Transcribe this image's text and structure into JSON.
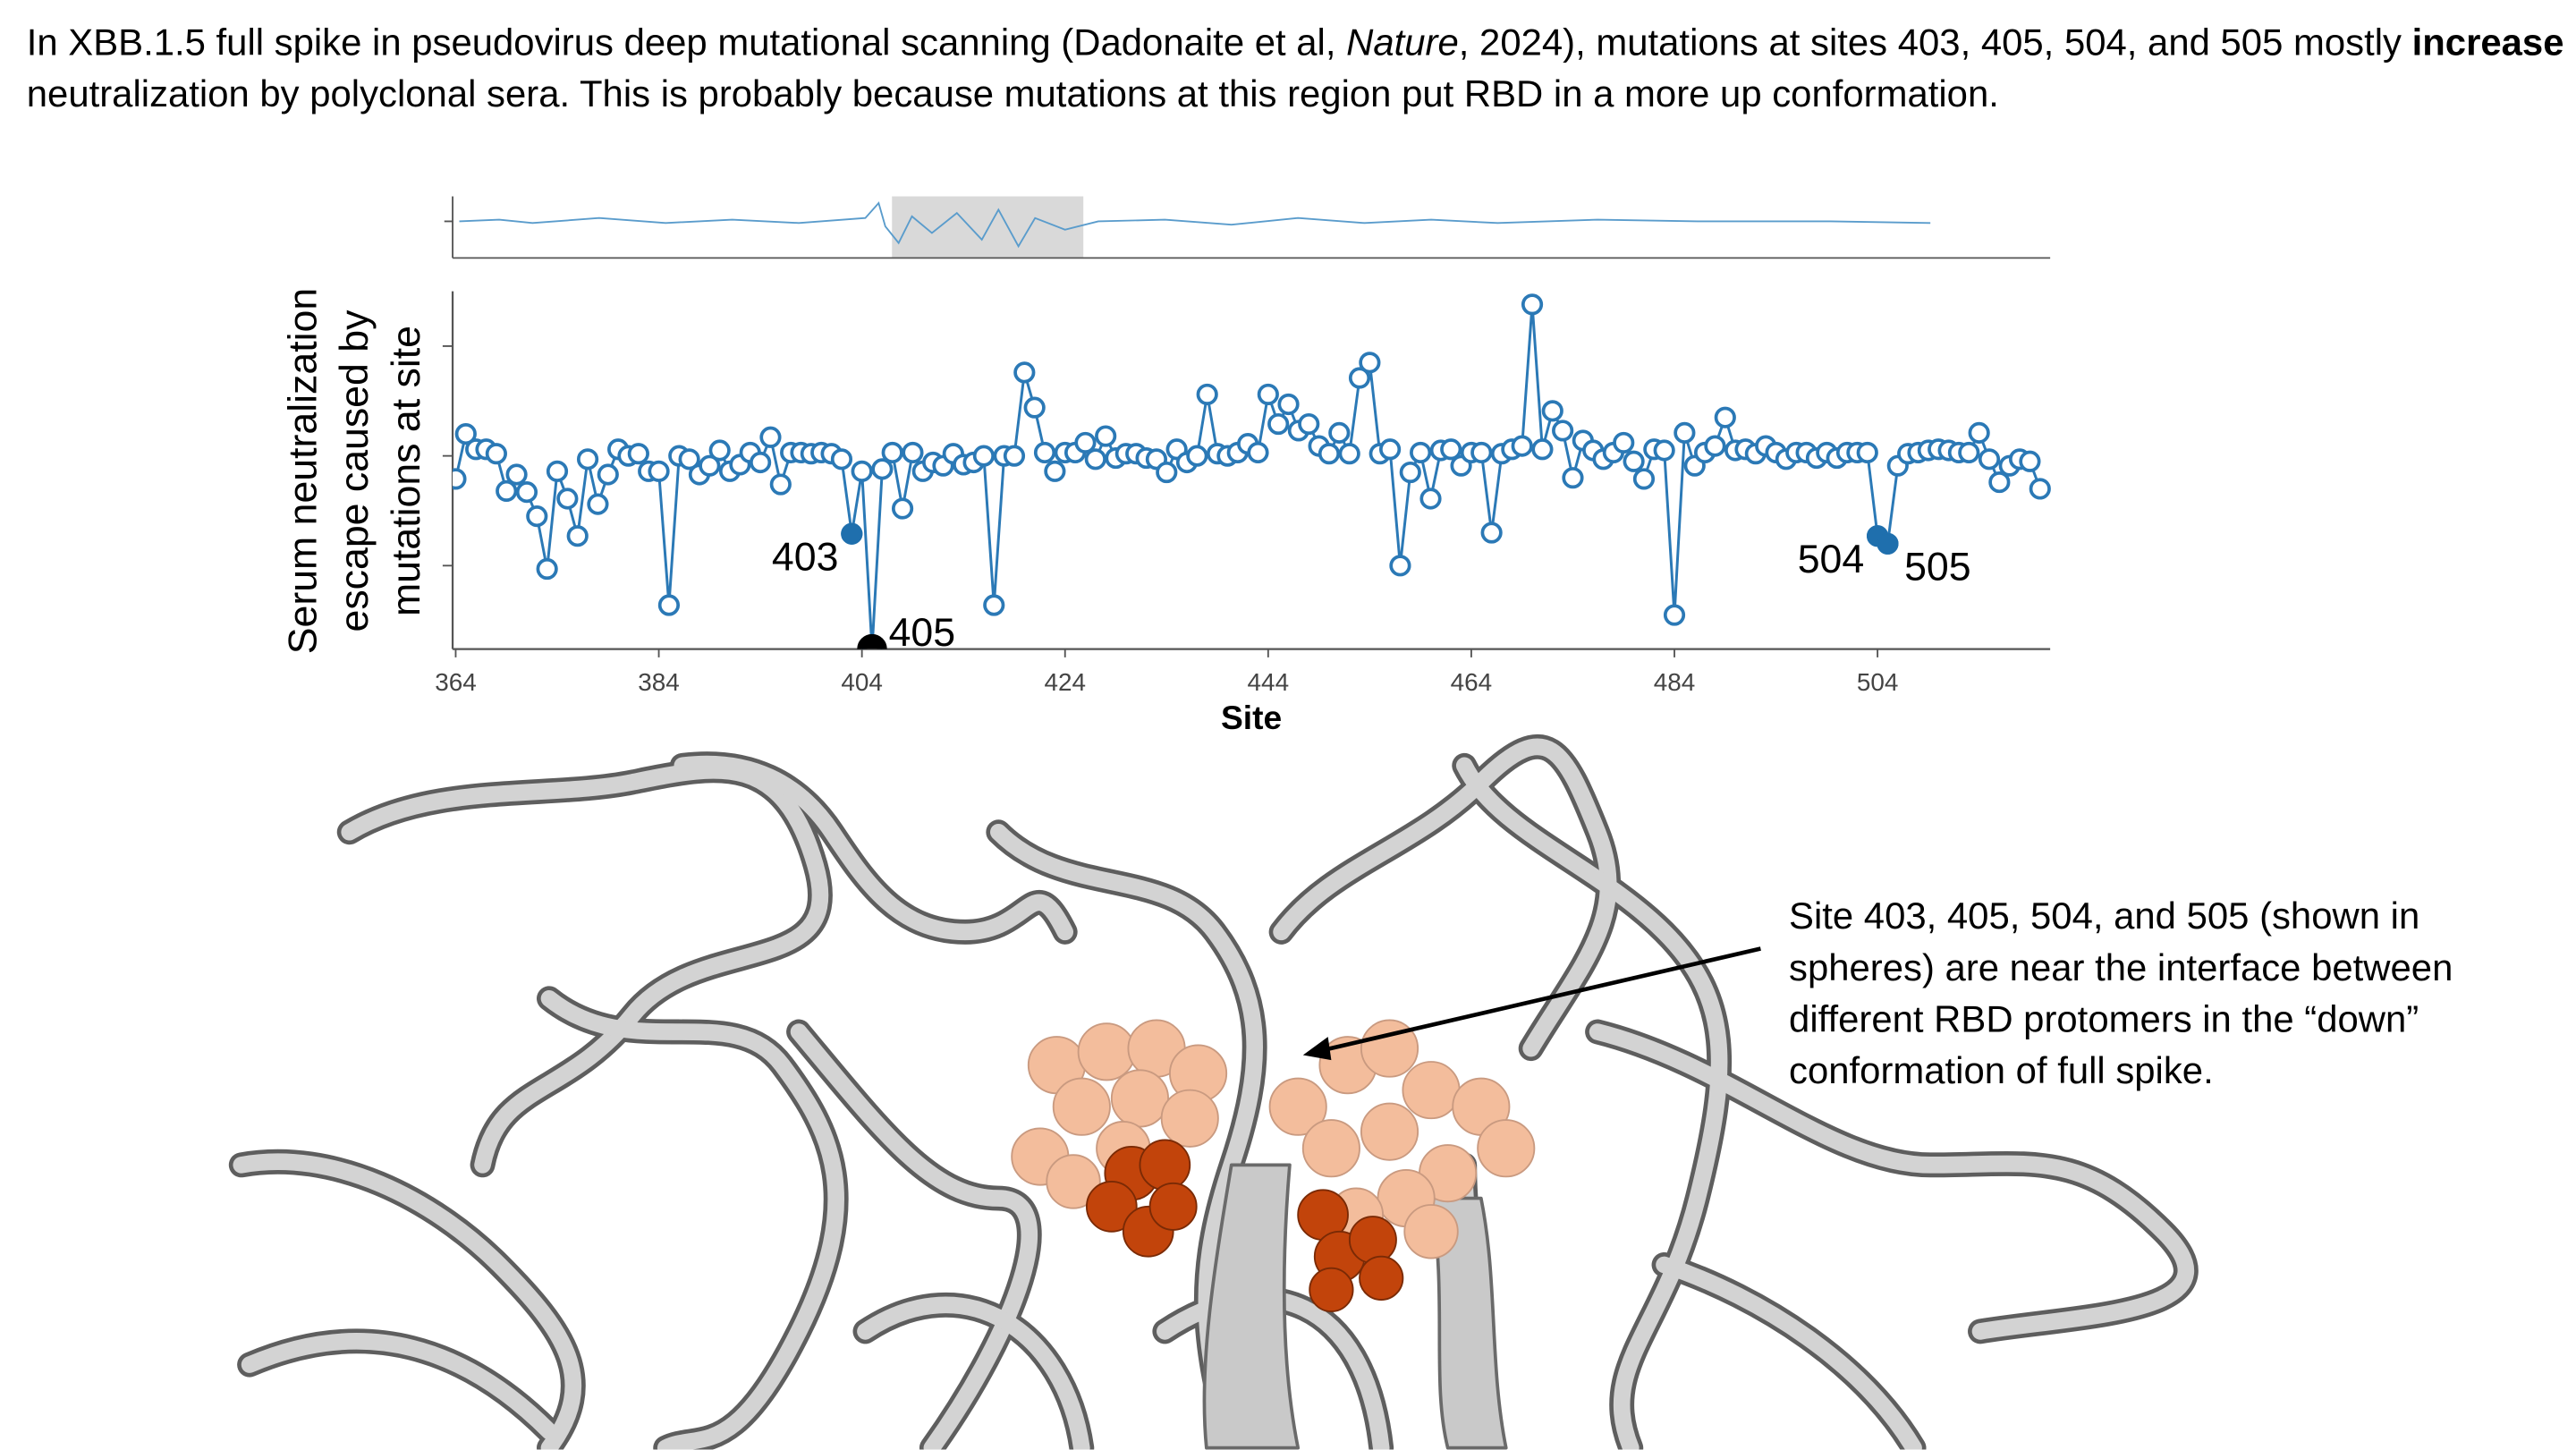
{
  "text": {
    "parts": [
      "In XBB.1.5 full spike in pseudovirus deep mutational scanning (Dadonaite et al, ",
      "Nature",
      ", 2024), mutations at sites 403, 405, 504, and 505 mostly ",
      "increase",
      " neutralization by polyclonal sera. This is probably because mutations at this region put RBD in a more up conformation."
    ]
  },
  "chart_data": {
    "type": "line",
    "x": [
      364,
      365,
      366,
      367,
      368,
      369,
      370,
      371,
      372,
      373,
      374,
      375,
      376,
      377,
      378,
      379,
      380,
      381,
      382,
      383,
      384,
      385,
      386,
      387,
      388,
      389,
      390,
      391,
      392,
      393,
      394,
      395,
      396,
      397,
      398,
      399,
      400,
      401,
      402,
      403,
      404,
      405,
      406,
      407,
      408,
      409,
      410,
      411,
      412,
      413,
      414,
      415,
      416,
      417,
      418,
      419,
      420,
      421,
      422,
      423,
      424,
      425,
      426,
      427,
      428,
      429,
      430,
      431,
      432,
      433,
      434,
      435,
      436,
      437,
      438,
      439,
      440,
      441,
      442,
      443,
      444,
      445,
      446,
      447,
      448,
      449,
      450,
      451,
      452,
      453,
      454,
      455,
      456,
      457,
      458,
      459,
      460,
      461,
      462,
      463,
      464,
      465,
      466,
      467,
      468,
      469,
      470,
      471,
      472,
      473,
      474,
      475,
      476,
      477,
      478,
      479,
      480,
      481,
      482,
      483,
      484,
      485,
      486,
      487,
      488,
      489,
      490,
      491,
      492,
      493,
      494,
      495,
      496,
      497,
      498,
      499,
      500,
      501,
      502,
      503,
      504,
      505,
      506,
      507,
      508,
      509,
      510,
      511,
      512,
      513,
      514,
      515,
      516,
      517,
      518,
      519,
      520
    ],
    "series": [
      {
        "color": "#2b79b6",
        "values": [
          -0.21,
          0.2,
          0.06,
          0.06,
          0.02,
          -0.32,
          -0.17,
          -0.33,
          -0.55,
          -1.03,
          -0.14,
          -0.39,
          -0.73,
          -0.03,
          -0.44,
          -0.17,
          0.06,
          0,
          0.02,
          -0.14,
          -0.14,
          -1.36,
          0,
          -0.03,
          -0.17,
          -0.09,
          0.05,
          -0.14,
          -0.08,
          0.03,
          -0.06,
          0.17,
          -0.26,
          0.03,
          0.03,
          0.02,
          0.03,
          0.02,
          -0.03,
          -0.71,
          -0.14,
          -1.76,
          -0.12,
          0.03,
          -0.48,
          0.03,
          -0.14,
          -0.06,
          -0.09,
          0.02,
          -0.08,
          -0.06,
          0,
          -1.36,
          0,
          0,
          0.76,
          0.44,
          0.03,
          -0.14,
          0.03,
          0.03,
          0.12,
          -0.03,
          0.18,
          -0.02,
          0.02,
          0.02,
          -0.02,
          -0.03,
          -0.15,
          0.06,
          -0.06,
          0,
          0.56,
          0.02,
          0,
          0.03,
          0.11,
          0.03,
          0.56,
          0.29,
          0.47,
          0.23,
          0.29,
          0.09,
          0.02,
          0.21,
          0.02,
          0.71,
          0.85,
          0.02,
          0.06,
          -1.0,
          -0.15,
          0.03,
          -0.39,
          0.05,
          0.06,
          -0.09,
          0.03,
          0.03,
          -0.7,
          0.02,
          0.06,
          0.09,
          1.38,
          0.06,
          0.41,
          0.23,
          -0.2,
          0.14,
          0.05,
          -0.03,
          0.03,
          0.12,
          -0.05,
          -0.21,
          0.06,
          0.05,
          -1.45,
          0.21,
          -0.09,
          0.03,
          0.09,
          0.35,
          0.05,
          0.06,
          0.02,
          0.09,
          0.03,
          -0.03,
          0.03,
          0.03,
          -0.02,
          0.03,
          -0.02,
          0.03,
          0.03,
          0.03,
          -0.73,
          -0.8,
          -0.09,
          0.02,
          0.03,
          0.05,
          0.06,
          0.05,
          0.03,
          0.03,
          0.21,
          -0.03,
          -0.24,
          -0.09,
          -0.03,
          -0.05,
          -0.3
        ]
      }
    ],
    "xlim": [
      363.7,
      521
    ],
    "ylim": [
      -1.76,
      1.5
    ],
    "xticks": [
      364,
      384,
      404,
      424,
      444,
      464,
      484,
      504
    ],
    "yticks": [
      -1,
      0,
      1
    ],
    "xlabel": "Site",
    "ylabel": [
      "Serum neutralization",
      "escape caused by",
      "mutations at site"
    ],
    "highlights": [
      {
        "x": 403,
        "label": "403",
        "color": "#1f6fad"
      },
      {
        "x": 405,
        "label": "405",
        "color": "#000000"
      },
      {
        "x": 504,
        "label": "504",
        "color": "#1f6fad"
      },
      {
        "x": 505,
        "label": "505",
        "color": "#1f6fad"
      }
    ]
  },
  "annotation": {
    "lines": [
      "Site 403, 405, 504, and 505 (shown in",
      "spheres) are near the interface between",
      "different RBD protomers in the “down”",
      "conformation of full spike."
    ]
  }
}
